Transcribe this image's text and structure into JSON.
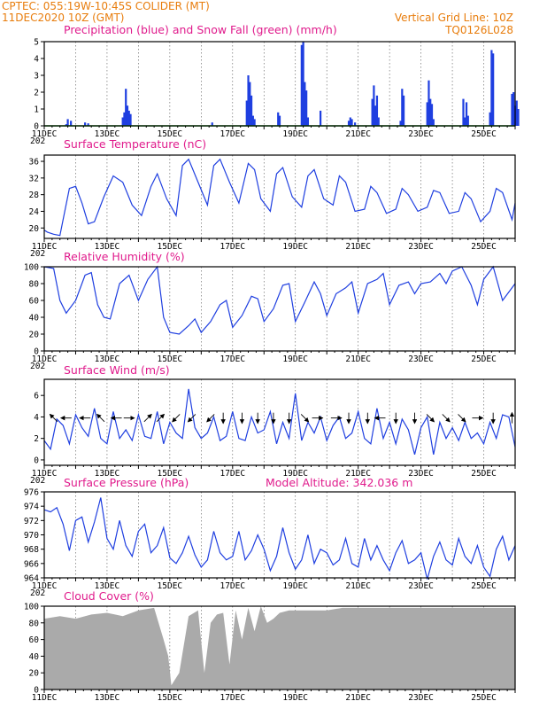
{
  "header": {
    "line1": "CPTEC:   055:19W-10:45S   COLIDER (MT)",
    "line2": "11DEC2020 10Z (GMT)",
    "grid_note": "Vertical Grid Line: 10Z",
    "code": "TQ0126L028",
    "model_altitude": "Model Altitude: 342.036  m"
  },
  "colors": {
    "header": "#e87d0d",
    "title": "#e01b8c",
    "line": "#1f3fe0",
    "precip": "#1f3fe0",
    "snow": "#1fa81f",
    "cloud": "#aaaaaa",
    "arrow": "#000000"
  },
  "x_axis": {
    "day_start": 11,
    "day_end": 26,
    "labels": [
      "11DEC",
      "13DEC",
      "15DEC",
      "17DEC",
      "19DEC",
      "21DEC",
      "23DEC",
      "25DEC"
    ],
    "label_days": [
      11,
      13,
      15,
      17,
      19,
      21,
      23,
      25
    ],
    "year_stub": "202"
  },
  "chart_data": [
    {
      "id": "precip",
      "type": "bar",
      "title": "Precipitation (blue) and Snow Fall (green) (mm/h)",
      "ylim": [
        0,
        5
      ],
      "yticks": [
        0,
        1,
        2,
        3,
        4,
        5
      ],
      "series_name": "Precipitation",
      "x": [
        11.7,
        11.75,
        11.85,
        12.3,
        12.4,
        13.5,
        13.55,
        13.6,
        13.65,
        13.7,
        13.75,
        16.35,
        17.45,
        17.5,
        17.55,
        17.6,
        17.65,
        17.7,
        18.45,
        18.5,
        19.2,
        19.25,
        19.3,
        19.35,
        19.4,
        19.8,
        20.7,
        20.75,
        20.8,
        20.9,
        21.45,
        21.5,
        21.55,
        21.6,
        21.65,
        22.35,
        22.4,
        22.45,
        23.2,
        23.25,
        23.3,
        23.35,
        23.4,
        24.35,
        24.4,
        24.45,
        24.5,
        25.2,
        25.25,
        25.3,
        25.9,
        25.95,
        26.0,
        26.05,
        26.1
      ],
      "values": [
        0.1,
        0.4,
        0.3,
        0.2,
        0.15,
        0.5,
        0.8,
        2.2,
        1.2,
        0.9,
        0.7,
        0.2,
        1.5,
        3.0,
        2.6,
        1.8,
        0.6,
        0.4,
        0.8,
        0.6,
        4.8,
        5.0,
        2.6,
        2.1,
        0.5,
        0.9,
        0.3,
        0.5,
        0.4,
        0.2,
        1.6,
        2.4,
        1.2,
        1.8,
        0.5,
        0.3,
        2.2,
        1.8,
        1.4,
        2.7,
        1.6,
        1.3,
        0.4,
        1.6,
        0.5,
        1.4,
        0.6,
        0.8,
        4.5,
        4.3,
        1.9,
        2.0,
        1.2,
        1.5,
        1.0
      ],
      "snow": 0
    },
    {
      "id": "temp",
      "type": "line",
      "title": "Surface Temperature (nC)",
      "ylim": [
        17.5,
        37.5
      ],
      "yticks": [
        20,
        24,
        28,
        32,
        36
      ],
      "x": [
        11.0,
        11.1,
        11.3,
        11.5,
        11.6,
        11.8,
        12.0,
        12.2,
        12.4,
        12.6,
        12.9,
        13.2,
        13.5,
        13.8,
        14.1,
        14.4,
        14.6,
        14.9,
        15.2,
        15.4,
        15.6,
        15.9,
        16.2,
        16.4,
        16.6,
        16.9,
        17.2,
        17.5,
        17.7,
        17.9,
        18.2,
        18.4,
        18.6,
        18.9,
        19.2,
        19.4,
        19.6,
        19.9,
        20.2,
        20.4,
        20.6,
        20.9,
        21.2,
        21.4,
        21.6,
        21.9,
        22.2,
        22.4,
        22.6,
        22.9,
        23.2,
        23.4,
        23.6,
        23.9,
        24.2,
        24.4,
        24.6,
        24.9,
        25.2,
        25.4,
        25.6,
        25.9,
        26.0
      ],
      "values": [
        19.5,
        19.0,
        18.5,
        18.2,
        22.0,
        29.5,
        30.0,
        26.0,
        21.0,
        21.5,
        27.5,
        32.5,
        31.0,
        25.5,
        23.0,
        30.0,
        33.0,
        27.0,
        23.0,
        35.0,
        36.5,
        31.0,
        25.5,
        35.0,
        36.5,
        31.0,
        26.0,
        35.5,
        34.0,
        27.0,
        24.0,
        33.0,
        34.5,
        27.5,
        25.0,
        32.5,
        34.0,
        27.0,
        25.5,
        32.5,
        31.0,
        24.0,
        24.5,
        30.0,
        28.5,
        23.5,
        24.5,
        29.5,
        28.0,
        24.0,
        25.0,
        29.0,
        28.5,
        23.5,
        24.0,
        28.5,
        27.0,
        21.5,
        24.0,
        29.5,
        28.5,
        22.0,
        26.0
      ]
    },
    {
      "id": "rh",
      "type": "line",
      "title": "Relative Humidity (%)",
      "ylim": [
        0,
        100
      ],
      "yticks": [
        0,
        20,
        40,
        60,
        80,
        100
      ],
      "x": [
        11.0,
        11.3,
        11.5,
        11.7,
        12.0,
        12.3,
        12.5,
        12.7,
        12.9,
        13.1,
        13.4,
        13.7,
        14.0,
        14.3,
        14.6,
        14.8,
        15.0,
        15.3,
        15.6,
        15.8,
        16.0,
        16.3,
        16.6,
        16.8,
        17.0,
        17.3,
        17.6,
        17.8,
        18.0,
        18.3,
        18.6,
        18.8,
        19.0,
        19.3,
        19.6,
        19.8,
        20.0,
        20.3,
        20.6,
        20.8,
        21.0,
        21.3,
        21.6,
        21.8,
        22.0,
        22.3,
        22.6,
        22.8,
        23.0,
        23.3,
        23.6,
        23.8,
        24.0,
        24.3,
        24.6,
        24.8,
        25.0,
        25.3,
        25.6,
        25.8,
        26.0
      ],
      "values": [
        100,
        98,
        60,
        45,
        60,
        90,
        93,
        55,
        40,
        38,
        80,
        90,
        60,
        85,
        100,
        40,
        22,
        20,
        30,
        38,
        22,
        35,
        55,
        60,
        28,
        42,
        65,
        62,
        35,
        50,
        78,
        80,
        35,
        58,
        82,
        68,
        42,
        68,
        75,
        82,
        45,
        80,
        85,
        92,
        55,
        78,
        82,
        68,
        80,
        82,
        92,
        80,
        95,
        100,
        78,
        55,
        85,
        100,
        60,
        70,
        80
      ]
    },
    {
      "id": "wind",
      "type": "line",
      "title": "Surface Wind (m/s)",
      "ylim": [
        -0.5,
        7.5
      ],
      "yticks": [
        0,
        2,
        4,
        6
      ],
      "x": [
        11.0,
        11.2,
        11.4,
        11.6,
        11.8,
        12.0,
        12.2,
        12.4,
        12.6,
        12.8,
        13.0,
        13.2,
        13.4,
        13.6,
        13.8,
        14.0,
        14.2,
        14.4,
        14.6,
        14.8,
        15.0,
        15.2,
        15.4,
        15.6,
        15.8,
        16.0,
        16.2,
        16.4,
        16.6,
        16.8,
        17.0,
        17.2,
        17.4,
        17.6,
        17.8,
        18.0,
        18.2,
        18.4,
        18.6,
        18.8,
        19.0,
        19.2,
        19.4,
        19.6,
        19.8,
        20.0,
        20.2,
        20.4,
        20.6,
        20.8,
        21.0,
        21.2,
        21.4,
        21.6,
        21.8,
        22.0,
        22.2,
        22.4,
        22.6,
        22.8,
        23.0,
        23.2,
        23.4,
        23.6,
        23.8,
        24.0,
        24.2,
        24.4,
        24.6,
        24.8,
        25.0,
        25.2,
        25.4,
        25.6,
        25.8,
        26.0
      ],
      "values": [
        1.8,
        1.0,
        3.8,
        3.2,
        1.5,
        4.2,
        3.0,
        2.2,
        4.8,
        2.0,
        1.5,
        4.5,
        2.0,
        2.8,
        1.8,
        4.2,
        2.2,
        2.0,
        4.5,
        1.5,
        3.5,
        2.5,
        2.0,
        6.6,
        3.0,
        2.0,
        2.5,
        4.0,
        1.8,
        2.2,
        4.5,
        2.0,
        1.8,
        4.0,
        2.5,
        2.8,
        4.5,
        1.5,
        3.5,
        2.0,
        6.2,
        1.8,
        3.5,
        2.5,
        4.0,
        1.8,
        3.2,
        4.0,
        2.0,
        2.5,
        4.5,
        2.0,
        1.5,
        4.8,
        2.0,
        3.5,
        1.5,
        3.8,
        2.8,
        0.5,
        3.0,
        4.0,
        0.5,
        3.5,
        2.0,
        3.0,
        1.8,
        3.5,
        2.0,
        2.5,
        1.5,
        3.5,
        2.0,
        4.2,
        4.0,
        1.2
      ],
      "arrows": [
        {
          "day": 11.3,
          "dir": "ul"
        },
        {
          "day": 11.7,
          "dir": "l"
        },
        {
          "day": 12.3,
          "dir": "l"
        },
        {
          "day": 12.8,
          "dir": "ul"
        },
        {
          "day": 13.3,
          "dir": "l"
        },
        {
          "day": 13.7,
          "dir": "r"
        },
        {
          "day": 14.3,
          "dir": "ur"
        },
        {
          "day": 14.7,
          "dir": "ur"
        },
        {
          "day": 15.2,
          "dir": "dl"
        },
        {
          "day": 15.7,
          "dir": "dl"
        },
        {
          "day": 16.3,
          "dir": "dl"
        },
        {
          "day": 16.7,
          "dir": "d"
        },
        {
          "day": 17.3,
          "dir": "d"
        },
        {
          "day": 17.8,
          "dir": "d"
        },
        {
          "day": 18.3,
          "dir": "d"
        },
        {
          "day": 18.8,
          "dir": "d"
        },
        {
          "day": 19.3,
          "dir": "dr"
        },
        {
          "day": 19.7,
          "dir": "r"
        },
        {
          "day": 20.3,
          "dir": "r"
        },
        {
          "day": 20.7,
          "dir": "d"
        },
        {
          "day": 21.3,
          "dir": "d"
        },
        {
          "day": 21.7,
          "dir": "l"
        },
        {
          "day": 22.2,
          "dir": "d"
        },
        {
          "day": 22.8,
          "dir": "d"
        },
        {
          "day": 23.3,
          "dir": "dr"
        },
        {
          "day": 23.8,
          "dir": "dr"
        },
        {
          "day": 24.3,
          "dir": "dr"
        },
        {
          "day": 24.8,
          "dir": "r"
        },
        {
          "day": 25.3,
          "dir": "d"
        },
        {
          "day": 25.9,
          "dir": "u"
        }
      ]
    },
    {
      "id": "pres",
      "type": "line",
      "title": "Surface Pressure (hPa)",
      "ylim": [
        964,
        976
      ],
      "yticks": [
        964,
        966,
        968,
        970,
        972,
        974,
        976
      ],
      "x": [
        11.0,
        11.2,
        11.4,
        11.6,
        11.8,
        12.0,
        12.2,
        12.4,
        12.6,
        12.8,
        13.0,
        13.2,
        13.4,
        13.6,
        13.8,
        14.0,
        14.2,
        14.4,
        14.6,
        14.8,
        15.0,
        15.2,
        15.4,
        15.6,
        15.8,
        16.0,
        16.2,
        16.4,
        16.6,
        16.8,
        17.0,
        17.2,
        17.4,
        17.6,
        17.8,
        18.0,
        18.2,
        18.4,
        18.6,
        18.8,
        19.0,
        19.2,
        19.4,
        19.6,
        19.8,
        20.0,
        20.2,
        20.4,
        20.6,
        20.8,
        21.0,
        21.2,
        21.4,
        21.6,
        21.8,
        22.0,
        22.2,
        22.4,
        22.6,
        22.8,
        23.0,
        23.2,
        23.4,
        23.6,
        23.8,
        24.0,
        24.2,
        24.4,
        24.6,
        24.8,
        25.0,
        25.2,
        25.4,
        25.6,
        25.8,
        26.0
      ],
      "values": [
        973.5,
        973.2,
        973.8,
        971.5,
        967.8,
        972.0,
        972.5,
        969.0,
        971.8,
        975.2,
        969.5,
        968.0,
        972.0,
        968.5,
        967.0,
        970.5,
        971.5,
        967.5,
        968.5,
        971.0,
        966.8,
        966.0,
        967.5,
        969.8,
        967.2,
        965.5,
        966.5,
        970.5,
        967.5,
        966.5,
        967.0,
        970.5,
        966.5,
        967.8,
        970.0,
        968.0,
        965.0,
        967.0,
        971.0,
        967.5,
        965.2,
        966.5,
        970.0,
        966.0,
        968.0,
        967.5,
        965.8,
        966.5,
        969.5,
        966.0,
        965.5,
        969.5,
        966.5,
        968.5,
        966.5,
        965.0,
        967.5,
        969.2,
        966.0,
        966.5,
        967.5,
        963.8,
        967.0,
        969.0,
        966.5,
        965.8,
        969.5,
        967.0,
        966.0,
        968.5,
        965.5,
        964.2,
        968.0,
        969.8,
        966.5,
        968.5
      ]
    },
    {
      "id": "cloud",
      "type": "area",
      "title": "Cloud Cover (%)",
      "ylim": [
        0,
        100
      ],
      "yticks": [
        0,
        20,
        40,
        60,
        80,
        100
      ],
      "x": [
        11.0,
        11.5,
        12.0,
        12.5,
        13.0,
        13.5,
        14.0,
        14.5,
        14.8,
        14.95,
        15.05,
        15.3,
        15.6,
        15.9,
        16.1,
        16.3,
        16.5,
        16.7,
        16.9,
        17.1,
        17.3,
        17.5,
        17.7,
        17.9,
        18.1,
        18.3,
        18.5,
        18.8,
        19.0,
        19.3,
        19.6,
        20.0,
        20.5,
        21.0,
        21.5,
        22.0,
        22.5,
        23.0,
        23.5,
        24.0,
        24.5,
        25.0,
        25.5,
        26.0
      ],
      "values": [
        85,
        88,
        85,
        90,
        92,
        88,
        95,
        98,
        60,
        40,
        5,
        20,
        88,
        95,
        20,
        80,
        90,
        92,
        30,
        95,
        60,
        98,
        70,
        100,
        80,
        85,
        92,
        95,
        95,
        95,
        95,
        95,
        98,
        98,
        98,
        98,
        98,
        98,
        98,
        98,
        98,
        98,
        98,
        98
      ]
    }
  ]
}
